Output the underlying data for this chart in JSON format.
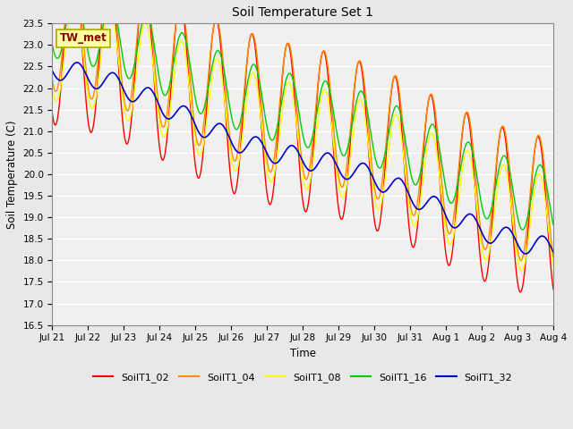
{
  "title": "Soil Temperature Set 1",
  "xlabel": "Time",
  "ylabel": "Soil Temperature (C)",
  "ylim": [
    16.5,
    23.5
  ],
  "annotation": "TW_met",
  "annotation_color": "#8B0000",
  "annotation_bg": "#FFFFA0",
  "colors": {
    "SoilT1_02": "#FF0000",
    "SoilT1_04": "#FF8C00",
    "SoilT1_08": "#FFFF00",
    "SoilT1_16": "#00CC00",
    "SoilT1_32": "#0000CC"
  },
  "legend_labels": [
    "SoilT1_02",
    "SoilT1_04",
    "SoilT1_08",
    "SoilT1_16",
    "SoilT1_32"
  ],
  "bg_color": "#E8E8E8",
  "plot_bg": "#F0F0F0",
  "x_tick_labels": [
    "Jul 21",
    "Jul 22",
    "Jul 23",
    "Jul 24",
    "Jul 25",
    "Jul 26",
    "Jul 27",
    "Jul 28",
    "Jul 29",
    "Jul 30",
    "Jul 31",
    "Aug 1",
    "Aug 2",
    "Aug 3",
    "Aug 4"
  ],
  "n_days": 14,
  "pts_per_day": 48
}
